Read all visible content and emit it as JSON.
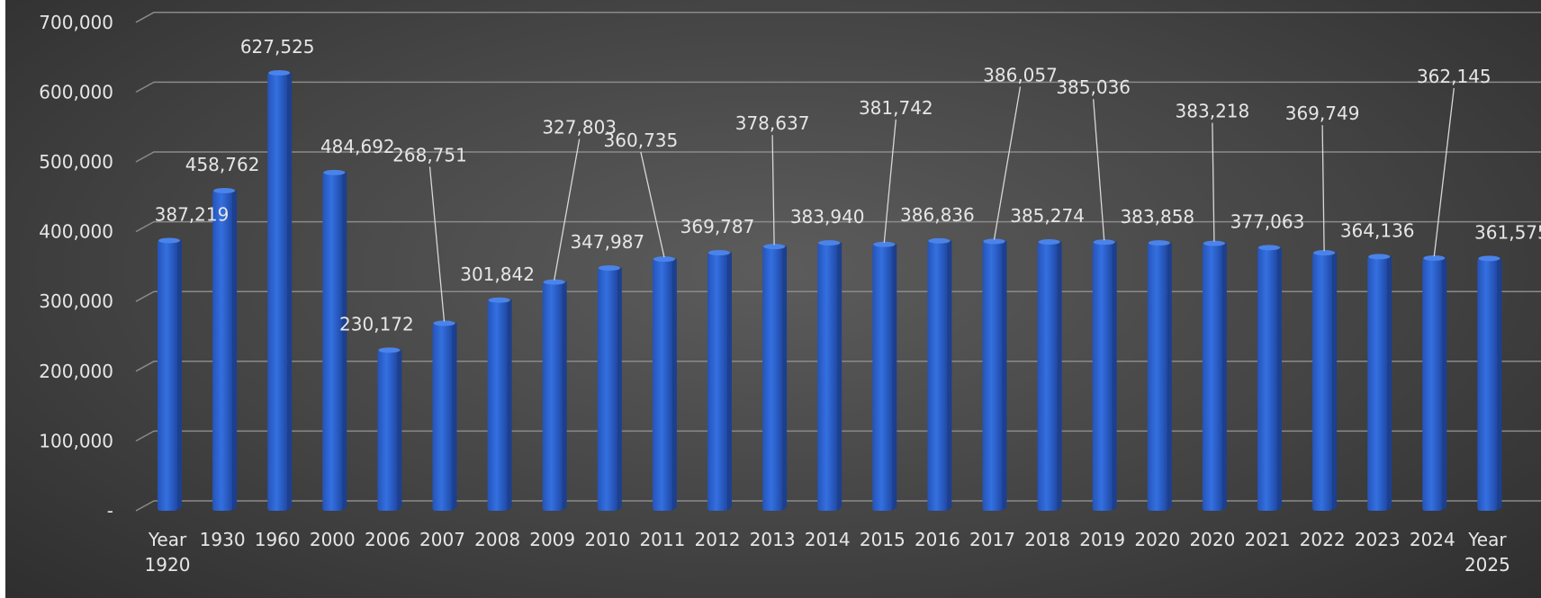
{
  "chart_data": {
    "type": "bar",
    "title": "",
    "xlabel": "",
    "ylabel": "",
    "ylim": [
      0,
      700000
    ],
    "yticks": [
      0,
      100000,
      200000,
      300000,
      400000,
      500000,
      600000,
      700000
    ],
    "ytick_labels": [
      "-",
      "100,000",
      "200,000",
      "300,000",
      "400,000",
      "500,000",
      "600,000",
      "700,000"
    ],
    "grid": true,
    "legend": "none",
    "bar_color": "#2e63cf",
    "categories": [
      [
        "Year",
        "1920"
      ],
      [
        "1930"
      ],
      [
        "1960"
      ],
      [
        "2000"
      ],
      [
        "2006"
      ],
      [
        "2007"
      ],
      [
        "2008"
      ],
      [
        "2009"
      ],
      [
        "2010"
      ],
      [
        "2011"
      ],
      [
        "2012"
      ],
      [
        "2013"
      ],
      [
        "2014"
      ],
      [
        "2015"
      ],
      [
        "2016"
      ],
      [
        "2017"
      ],
      [
        "2018"
      ],
      [
        "2019"
      ],
      [
        "2020"
      ],
      [
        "2020"
      ],
      [
        "2021"
      ],
      [
        "2022"
      ],
      [
        "2023"
      ],
      [
        "2024"
      ],
      [
        "Year",
        "2025"
      ]
    ],
    "values": [
      387219,
      458762,
      627525,
      484692,
      230172,
      268751,
      301842,
      327803,
      347987,
      360735,
      369787,
      378637,
      383940,
      381742,
      386836,
      386057,
      385274,
      385036,
      383858,
      383218,
      377063,
      369749,
      364136,
      362145,
      361575
    ],
    "labels": [
      "387,219",
      "458,762",
      "627,525",
      "484,692",
      "230,172",
      "268,751",
      "301,842",
      "327,803",
      "347,987",
      "360,735",
      "369,787",
      "378,637",
      "383,940",
      "381,742",
      "386,836",
      "386,057",
      "385,274",
      "385,036",
      "383,858",
      "383,218",
      "377,063",
      "369,749",
      "364,136",
      "362,145",
      "361,575"
    ]
  }
}
